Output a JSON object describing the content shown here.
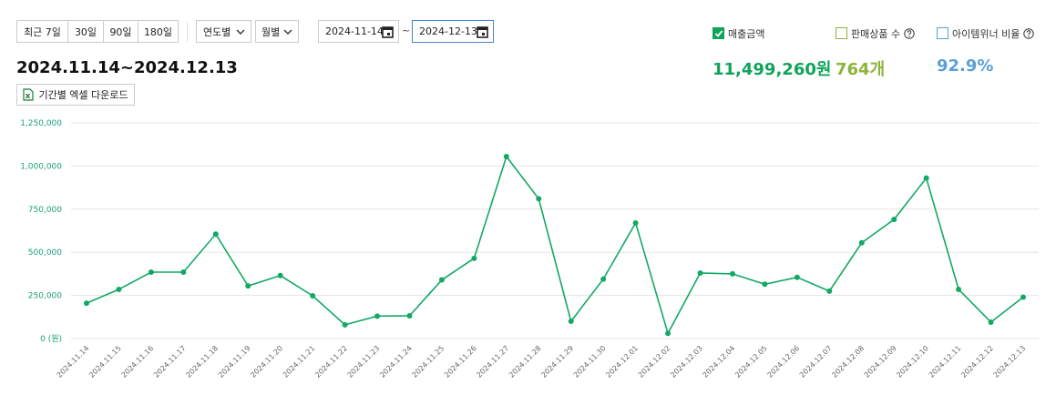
{
  "controls": {
    "period_buttons": [
      "최근 7일",
      "30일",
      "90일",
      "180일"
    ],
    "selects": [
      "연도별",
      "월별"
    ],
    "start_date": "2024-11-14",
    "separator": "~",
    "end_date": "2024-12-13"
  },
  "summary": {
    "range_title": "2024.11.14~2024.12.13",
    "download_button": "기간별 엑셀 다운로드"
  },
  "metrics": [
    {
      "label": "매출금액",
      "value": "11,499,260원",
      "color": "#10a35a",
      "checked": true,
      "help": false
    },
    {
      "label": "판매상품 수",
      "value": "764개",
      "color": "#8bb43a",
      "checked": false,
      "help": true
    },
    {
      "label": "아이템위너 비율",
      "value": "92.9%",
      "color": "#5a9fd6",
      "checked": false,
      "help": true
    }
  ],
  "chart_data": {
    "type": "line",
    "color": "#12a865",
    "grid": true,
    "categories": [
      "2024.11.14",
      "2024.11.15",
      "2024.11.16",
      "2024.11.17",
      "2024.11.18",
      "2024.11.19",
      "2024.11.20",
      "2024.11.21",
      "2024.11.22",
      "2024.11.23",
      "2024.11.24",
      "2024.11.25",
      "2024.11.26",
      "2024.11.27",
      "2024.11.28",
      "2024.11.29",
      "2024.11.30",
      "2024.12.01",
      "2024.12.02",
      "2024.12.03",
      "2024.12.04",
      "2024.12.05",
      "2024.12.06",
      "2024.12.07",
      "2024.12.08",
      "2024.12.09",
      "2024.12.10",
      "2024.12.11",
      "2024.12.12",
      "2024.12.13"
    ],
    "values": [
      205000,
      285000,
      385000,
      385000,
      605000,
      305000,
      365000,
      248000,
      80000,
      130000,
      132000,
      340000,
      465000,
      1055000,
      810000,
      100000,
      345000,
      670000,
      30000,
      380000,
      375000,
      315000,
      355000,
      275000,
      555000,
      690000,
      930000,
      285000,
      95000,
      240000
    ],
    "ylim": [
      0,
      1250000
    ],
    "yticks": [
      {
        "value": 0,
        "label": "0 (원)"
      },
      {
        "value": 250000,
        "label": "250,000"
      },
      {
        "value": 500000,
        "label": "500,000"
      },
      {
        "value": 750000,
        "label": "750,000"
      },
      {
        "value": 1000000,
        "label": "1,000,000"
      },
      {
        "value": 1250000,
        "label": "1,250,000"
      }
    ]
  }
}
